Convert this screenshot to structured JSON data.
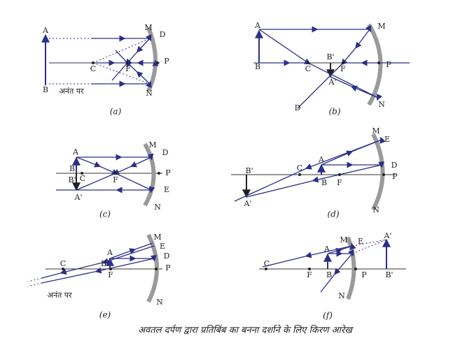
{
  "panels": [
    {
      "caption": "(a)",
      "labels": [
        "A",
        "B",
        "M",
        "D",
        "C",
        "F",
        "P",
        "N",
        "अनंत पर"
      ]
    },
    {
      "caption": "(b)",
      "labels": [
        "A",
        "B",
        "M",
        "N",
        "P",
        "C",
        "F",
        "B'",
        "A'",
        "D"
      ]
    },
    {
      "caption": "(c)",
      "labels": [
        "A",
        "B",
        "B'",
        "C",
        "A'",
        "F",
        "M",
        "D",
        "P",
        "E",
        "N"
      ]
    },
    {
      "caption": "(d)",
      "labels": [
        "M",
        "E",
        "D",
        "P",
        "N",
        "A",
        "B",
        "F",
        "C",
        "B'",
        "A'"
      ]
    },
    {
      "caption": "(e)",
      "labels": [
        "M",
        "E",
        "D",
        "P",
        "N",
        "C",
        "A",
        "B",
        "F",
        "अनंत पर"
      ]
    },
    {
      "caption": "(f)",
      "labels": [
        "C",
        "F",
        "A",
        "B",
        "M",
        "E",
        "P",
        "N",
        "A'",
        "B'"
      ]
    }
  ],
  "caption": "अवतल दर्पण द्वारा प्रतिबिंब का बनना दर्शाने के लिए किरण आरेख"
}
